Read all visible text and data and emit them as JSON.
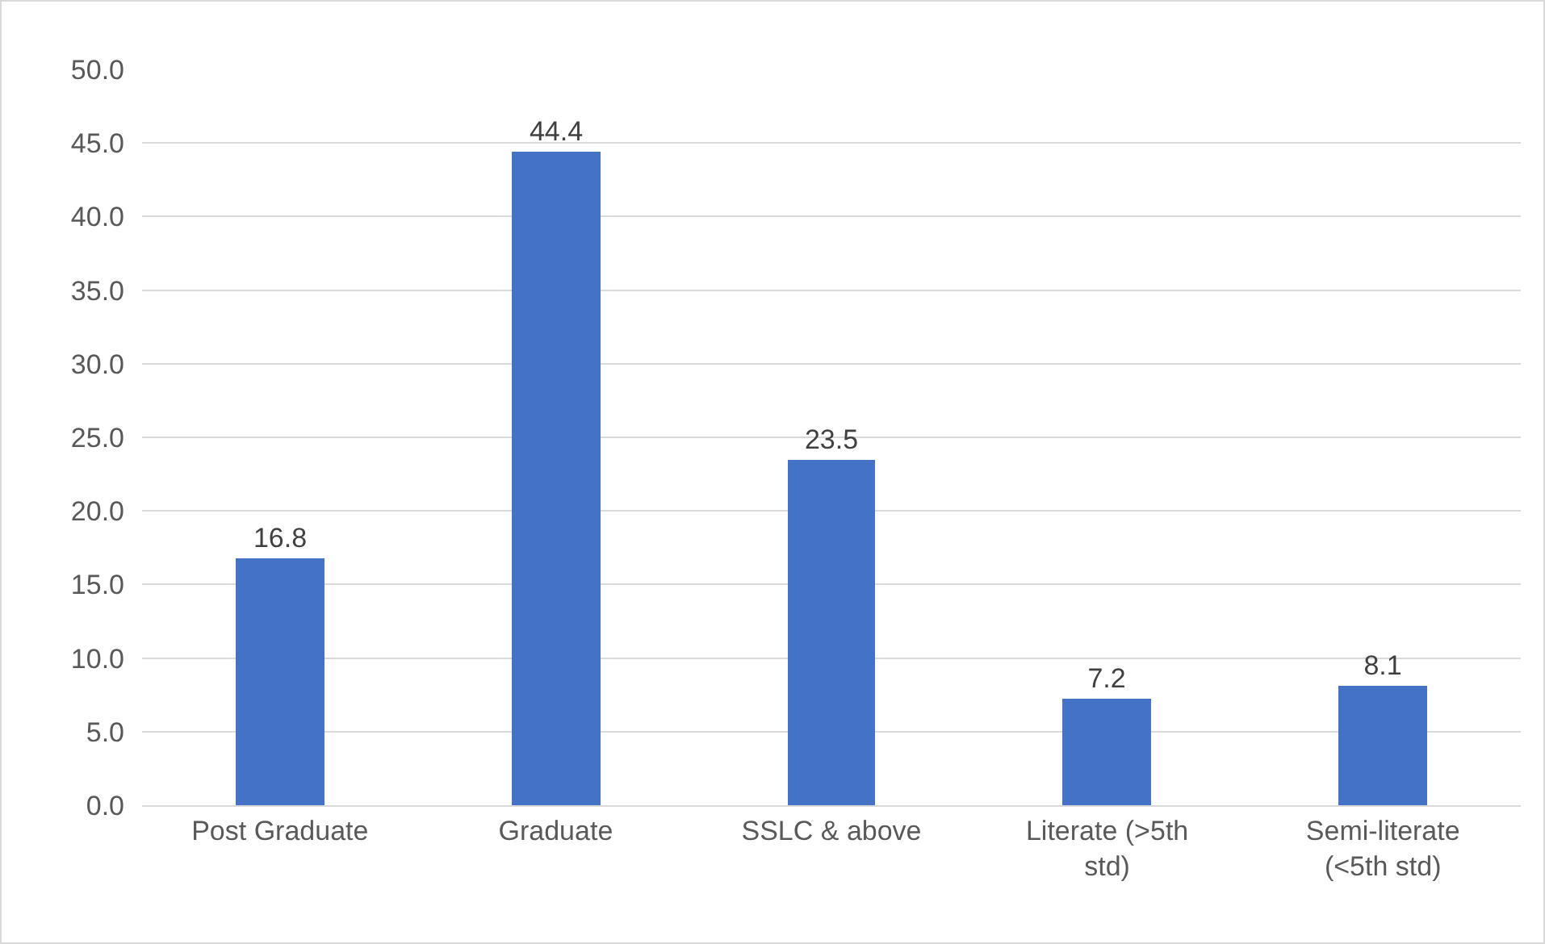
{
  "chart_data": {
    "type": "bar",
    "categories": [
      "Post Graduate",
      "Graduate",
      "SSLC & above",
      "Literate (>5th std)",
      "Semi-literate (<5th std)"
    ],
    "values": [
      16.8,
      44.4,
      23.5,
      7.2,
      8.1
    ],
    "color": "#4472c4",
    "data_labels": true,
    "grid": "y",
    "ylim": [
      0,
      50
    ],
    "yticks": [
      {
        "value": 0,
        "label": "0.0"
      },
      {
        "value": 5,
        "label": "5.0"
      },
      {
        "value": 10,
        "label": "10.0"
      },
      {
        "value": 15,
        "label": "15.0"
      },
      {
        "value": 20,
        "label": "20.0"
      },
      {
        "value": 25,
        "label": "25.0"
      },
      {
        "value": 30,
        "label": "30.0"
      },
      {
        "value": 35,
        "label": "35.0"
      },
      {
        "value": 40,
        "label": "40.0"
      },
      {
        "value": 45,
        "label": "45.0"
      },
      {
        "value": 50,
        "label": "50.0"
      }
    ]
  }
}
